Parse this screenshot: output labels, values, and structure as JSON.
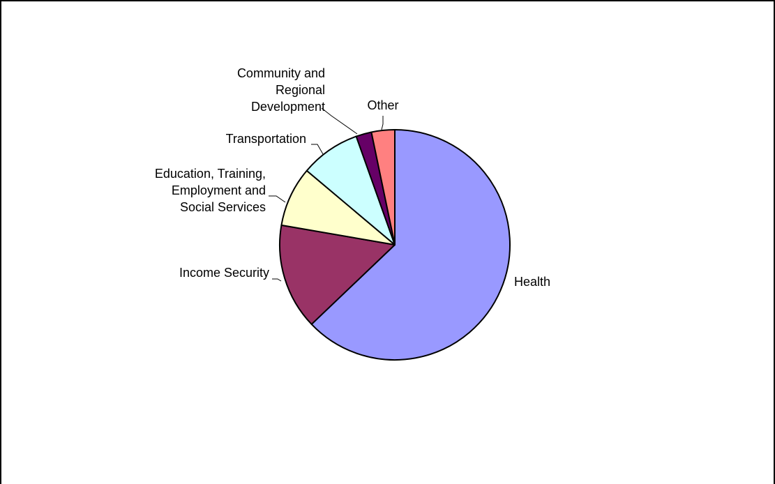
{
  "chart_data": {
    "type": "pie",
    "title": "",
    "slices": [
      {
        "label": "Health",
        "value": 63.5,
        "color": "#9999FF",
        "label_lines": [
          "Health"
        ]
      },
      {
        "label": "Income Security",
        "value": 15.0,
        "color": "#993366",
        "label_lines": [
          "Income Security"
        ]
      },
      {
        "label": "Education, Training, Employment and Social Services",
        "value": 8.5,
        "color": "#FFFFCC",
        "label_lines": [
          "Education, Training,",
          "Employment and",
          "Social Services"
        ]
      },
      {
        "label": "Transportation",
        "value": 8.5,
        "color": "#CCFFFF",
        "label_lines": [
          "Transportation"
        ]
      },
      {
        "label": "Community and Regional Development",
        "value": 2.2,
        "color": "#660066",
        "label_lines": [
          "Community and",
          "Regional",
          "Development"
        ]
      },
      {
        "label": "Other",
        "value": 3.3,
        "color": "#FF8080",
        "label_lines": [
          "Other"
        ]
      }
    ],
    "start": "12 o'clock",
    "direction": "clockwise",
    "legend": "none (data labels with leader lines)"
  }
}
